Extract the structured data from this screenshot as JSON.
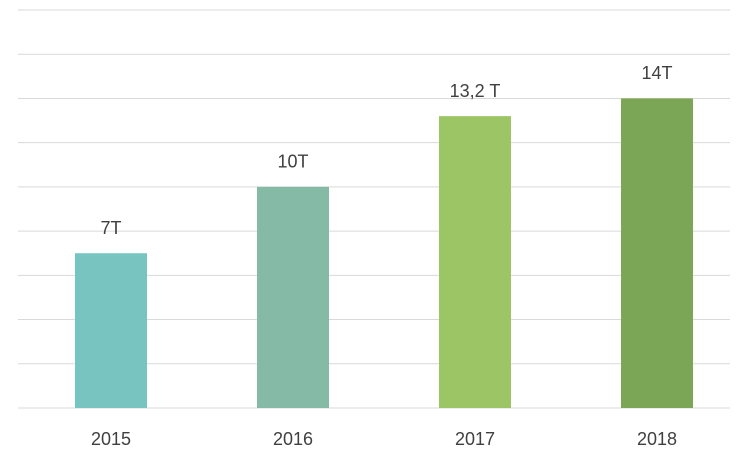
{
  "chart_data": {
    "type": "bar",
    "categories": [
      "2015",
      "2016",
      "2017",
      "2018"
    ],
    "values": [
      7,
      10,
      13.2,
      14
    ],
    "value_labels": [
      "7T",
      "10T",
      "13,2 T",
      "14T"
    ],
    "colors": [
      "#77c4c0",
      "#85bba6",
      "#9cc566",
      "#7aa655"
    ],
    "ylim": [
      0,
      18
    ],
    "yticks": [
      0,
      2,
      4,
      6,
      8,
      10,
      12,
      14,
      16,
      18
    ],
    "grid": true
  }
}
